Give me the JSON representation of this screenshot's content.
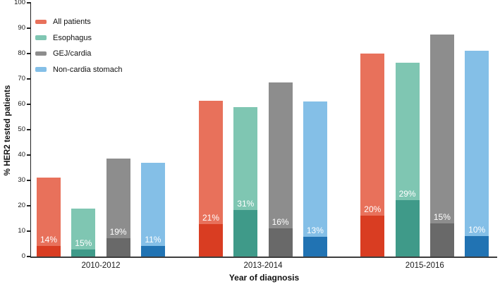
{
  "chart_data": {
    "type": "bar",
    "title": "",
    "xlabel": "Year of diagnosis",
    "ylabel": "% HER2 tested patients",
    "ylim": [
      0,
      100
    ],
    "ytick_labels": [
      "0",
      "10",
      "20",
      "30",
      "40",
      "50",
      "60",
      "70",
      "80",
      "90",
      "100"
    ],
    "grid": false,
    "legend_position": "top-left",
    "categories": [
      "2010-2012",
      "2013-2014",
      "2015-2016"
    ],
    "series": [
      {
        "name": "All patients",
        "color_light": "#E8715B",
        "color_dark": "#D93D22",
        "tested_pct": [
          31,
          61.5,
          80
        ],
        "positive_pct_of_all": [
          4.3,
          12.9,
          16.0
        ],
        "bar_labels": [
          "14%",
          "21%",
          "20%"
        ]
      },
      {
        "name": "Esophagus",
        "color_light": "#7FC6B2",
        "color_dark": "#3F9A89",
        "tested_pct": [
          19,
          59,
          76.5
        ],
        "positive_pct_of_all": [
          2.9,
          18.3,
          22.2
        ],
        "bar_labels": [
          "15%",
          "31%",
          "29%"
        ]
      },
      {
        "name": "GEJ/cardia",
        "color_light": "#8D8D8D",
        "color_dark": "#696969",
        "tested_pct": [
          38.5,
          68.5,
          87.5
        ],
        "positive_pct_of_all": [
          7.3,
          11.0,
          13.1
        ],
        "bar_labels": [
          "19%",
          "16%",
          "15%"
        ]
      },
      {
        "name": "Non-cardia stomach",
        "color_light": "#84BFE7",
        "color_dark": "#2173B3",
        "tested_pct": [
          37,
          61,
          81
        ],
        "positive_pct_of_all": [
          4.1,
          7.9,
          8.1
        ],
        "bar_labels": [
          "11%",
          "13%",
          "10%"
        ]
      }
    ]
  }
}
